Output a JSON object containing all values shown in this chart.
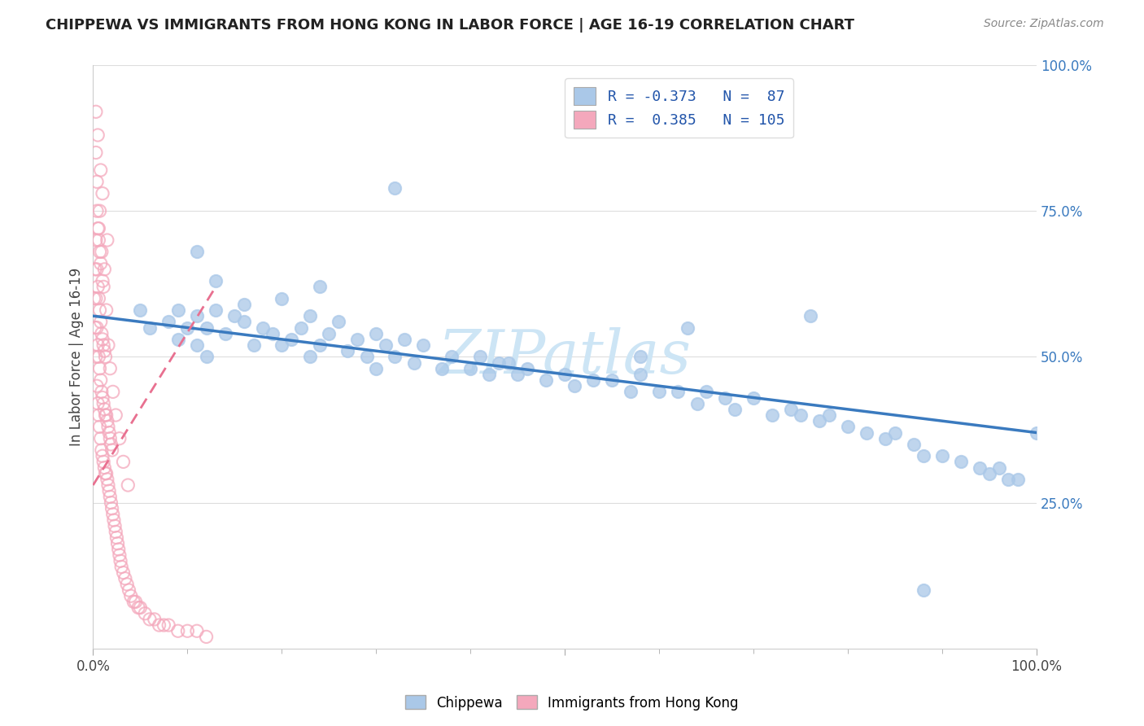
{
  "title": "CHIPPEWA VS IMMIGRANTS FROM HONG KONG IN LABOR FORCE | AGE 16-19 CORRELATION CHART",
  "source_text": "Source: ZipAtlas.com",
  "ylabel": "In Labor Force | Age 16-19",
  "chippewa_R": -0.373,
  "chippewa_N": 87,
  "hk_R": 0.385,
  "hk_N": 105,
  "chippewa_dot_color": "#aac8e8",
  "hk_dot_color": "#f4a8bc",
  "chippewa_line_color": "#3a7abf",
  "hk_line_color": "#e87090",
  "background_color": "#ffffff",
  "watermark_color": "#cde5f5",
  "legend_box_chippewa": "#aac8e8",
  "legend_box_hk": "#f4a8bc",
  "legend_text_color": "#2255aa",
  "xlim": [
    0.0,
    1.0
  ],
  "ylim": [
    0.0,
    1.0
  ],
  "chip_line_x0": 0.0,
  "chip_line_y0": 0.57,
  "chip_line_x1": 1.0,
  "chip_line_y1": 0.37,
  "hk_line_x0": 0.0,
  "hk_line_y0": 0.28,
  "hk_line_x1": 0.13,
  "hk_line_y1": 0.62,
  "chippewa_x": [
    0.05,
    0.06,
    0.08,
    0.09,
    0.09,
    0.1,
    0.11,
    0.11,
    0.12,
    0.12,
    0.13,
    0.14,
    0.15,
    0.16,
    0.17,
    0.18,
    0.19,
    0.2,
    0.21,
    0.22,
    0.23,
    0.24,
    0.25,
    0.27,
    0.28,
    0.29,
    0.3,
    0.31,
    0.32,
    0.34,
    0.35,
    0.37,
    0.38,
    0.4,
    0.41,
    0.42,
    0.43,
    0.45,
    0.46,
    0.48,
    0.5,
    0.51,
    0.53,
    0.55,
    0.57,
    0.58,
    0.6,
    0.62,
    0.64,
    0.65,
    0.67,
    0.68,
    0.7,
    0.72,
    0.74,
    0.75,
    0.77,
    0.78,
    0.8,
    0.82,
    0.84,
    0.85,
    0.87,
    0.88,
    0.9,
    0.92,
    0.94,
    0.95,
    0.96,
    0.97,
    0.98,
    1.0,
    0.24,
    0.32,
    0.44,
    0.58,
    0.63,
    0.76,
    0.88,
    0.11,
    0.13,
    0.16,
    0.2,
    0.23,
    0.26,
    0.3,
    0.33
  ],
  "chippewa_y": [
    0.58,
    0.55,
    0.56,
    0.53,
    0.58,
    0.55,
    0.52,
    0.57,
    0.5,
    0.55,
    0.58,
    0.54,
    0.57,
    0.56,
    0.52,
    0.55,
    0.54,
    0.52,
    0.53,
    0.55,
    0.5,
    0.52,
    0.54,
    0.51,
    0.53,
    0.5,
    0.48,
    0.52,
    0.5,
    0.49,
    0.52,
    0.48,
    0.5,
    0.48,
    0.5,
    0.47,
    0.49,
    0.47,
    0.48,
    0.46,
    0.47,
    0.45,
    0.46,
    0.46,
    0.44,
    0.47,
    0.44,
    0.44,
    0.42,
    0.44,
    0.43,
    0.41,
    0.43,
    0.4,
    0.41,
    0.4,
    0.39,
    0.4,
    0.38,
    0.37,
    0.36,
    0.37,
    0.35,
    0.33,
    0.33,
    0.32,
    0.31,
    0.3,
    0.31,
    0.29,
    0.29,
    0.37,
    0.62,
    0.79,
    0.49,
    0.5,
    0.55,
    0.57,
    0.1,
    0.68,
    0.63,
    0.59,
    0.6,
    0.57,
    0.56,
    0.54,
    0.53
  ],
  "hk_x": [
    0.001,
    0.002,
    0.002,
    0.003,
    0.003,
    0.003,
    0.004,
    0.004,
    0.004,
    0.004,
    0.005,
    0.005,
    0.005,
    0.005,
    0.006,
    0.006,
    0.006,
    0.006,
    0.007,
    0.007,
    0.007,
    0.007,
    0.008,
    0.008,
    0.008,
    0.008,
    0.009,
    0.009,
    0.009,
    0.01,
    0.01,
    0.01,
    0.01,
    0.011,
    0.011,
    0.011,
    0.012,
    0.012,
    0.012,
    0.013,
    0.013,
    0.013,
    0.014,
    0.014,
    0.015,
    0.015,
    0.016,
    0.016,
    0.017,
    0.017,
    0.018,
    0.018,
    0.019,
    0.019,
    0.02,
    0.02,
    0.021,
    0.022,
    0.023,
    0.024,
    0.025,
    0.026,
    0.027,
    0.028,
    0.029,
    0.03,
    0.032,
    0.034,
    0.036,
    0.038,
    0.04,
    0.043,
    0.045,
    0.048,
    0.05,
    0.055,
    0.06,
    0.065,
    0.07,
    0.075,
    0.08,
    0.09,
    0.1,
    0.11,
    0.12,
    0.003,
    0.005,
    0.008,
    0.01,
    0.015,
    0.003,
    0.007,
    0.012,
    0.004,
    0.006,
    0.009,
    0.011,
    0.014,
    0.016,
    0.018,
    0.021,
    0.024,
    0.028,
    0.032,
    0.037
  ],
  "hk_y": [
    0.6,
    0.55,
    0.65,
    0.5,
    0.6,
    0.7,
    0.45,
    0.55,
    0.65,
    0.75,
    0.42,
    0.52,
    0.62,
    0.72,
    0.4,
    0.5,
    0.6,
    0.7,
    0.38,
    0.48,
    0.58,
    0.68,
    0.36,
    0.46,
    0.56,
    0.66,
    0.34,
    0.44,
    0.54,
    0.33,
    0.43,
    0.53,
    0.63,
    0.32,
    0.42,
    0.52,
    0.31,
    0.41,
    0.51,
    0.3,
    0.4,
    0.5,
    0.3,
    0.4,
    0.29,
    0.39,
    0.28,
    0.38,
    0.27,
    0.37,
    0.26,
    0.36,
    0.25,
    0.35,
    0.24,
    0.34,
    0.23,
    0.22,
    0.21,
    0.2,
    0.19,
    0.18,
    0.17,
    0.16,
    0.15,
    0.14,
    0.13,
    0.12,
    0.11,
    0.1,
    0.09,
    0.08,
    0.08,
    0.07,
    0.07,
    0.06,
    0.05,
    0.05,
    0.04,
    0.04,
    0.04,
    0.03,
    0.03,
    0.03,
    0.02,
    0.92,
    0.88,
    0.82,
    0.78,
    0.7,
    0.85,
    0.75,
    0.65,
    0.8,
    0.72,
    0.68,
    0.62,
    0.58,
    0.52,
    0.48,
    0.44,
    0.4,
    0.36,
    0.32,
    0.28
  ]
}
